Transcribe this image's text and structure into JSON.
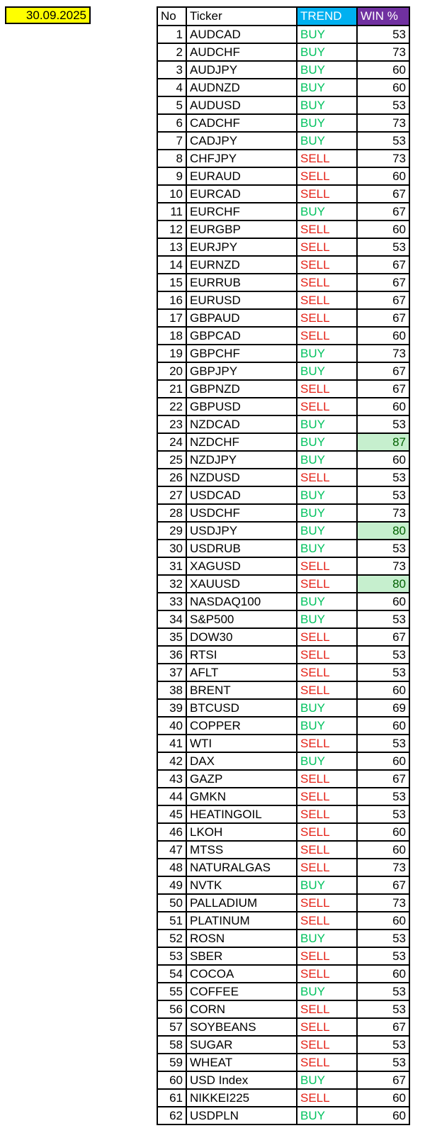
{
  "date_label": "30.09.2025",
  "colors": {
    "date_bg": "#FFFF00",
    "trend_header_bg": "#00B0F0",
    "win_header_bg": "#7030A0",
    "header_text": "#FFFFFF",
    "buy_text": "#00C25E",
    "sell_text": "#E42117",
    "highlight_bg": "#C6EFCE",
    "highlight_text": "#006100",
    "cell_text": "#000000"
  },
  "table": {
    "headers": [
      "No",
      "Ticker",
      "TREND",
      "WIN %"
    ],
    "rows": [
      {
        "no": 1,
        "ticker": "AUDCAD",
        "trend": "BUY",
        "win": 53,
        "highlight": false
      },
      {
        "no": 2,
        "ticker": "AUDCHF",
        "trend": "BUY",
        "win": 73,
        "highlight": false
      },
      {
        "no": 3,
        "ticker": "AUDJPY",
        "trend": "BUY",
        "win": 60,
        "highlight": false
      },
      {
        "no": 4,
        "ticker": "AUDNZD",
        "trend": "BUY",
        "win": 60,
        "highlight": false
      },
      {
        "no": 5,
        "ticker": "AUDUSD",
        "trend": "BUY",
        "win": 53,
        "highlight": false
      },
      {
        "no": 6,
        "ticker": "CADCHF",
        "trend": "BUY",
        "win": 73,
        "highlight": false
      },
      {
        "no": 7,
        "ticker": "CADJPY",
        "trend": "BUY",
        "win": 53,
        "highlight": false
      },
      {
        "no": 8,
        "ticker": "CHFJPY",
        "trend": "SELL",
        "win": 73,
        "highlight": false
      },
      {
        "no": 9,
        "ticker": "EURAUD",
        "trend": "SELL",
        "win": 60,
        "highlight": false
      },
      {
        "no": 10,
        "ticker": "EURCAD",
        "trend": "SELL",
        "win": 67,
        "highlight": false
      },
      {
        "no": 11,
        "ticker": "EURCHF",
        "trend": "BUY",
        "win": 67,
        "highlight": false
      },
      {
        "no": 12,
        "ticker": "EURGBP",
        "trend": "SELL",
        "win": 60,
        "highlight": false
      },
      {
        "no": 13,
        "ticker": "EURJPY",
        "trend": "SELL",
        "win": 53,
        "highlight": false
      },
      {
        "no": 14,
        "ticker": "EURNZD",
        "trend": "SELL",
        "win": 67,
        "highlight": false
      },
      {
        "no": 15,
        "ticker": "EURRUB",
        "trend": "SELL",
        "win": 67,
        "highlight": false
      },
      {
        "no": 16,
        "ticker": "EURUSD",
        "trend": "SELL",
        "win": 67,
        "highlight": false
      },
      {
        "no": 17,
        "ticker": "GBPAUD",
        "trend": "SELL",
        "win": 67,
        "highlight": false
      },
      {
        "no": 18,
        "ticker": "GBPCAD",
        "trend": "SELL",
        "win": 60,
        "highlight": false
      },
      {
        "no": 19,
        "ticker": "GBPCHF",
        "trend": "BUY",
        "win": 73,
        "highlight": false
      },
      {
        "no": 20,
        "ticker": "GBPJPY",
        "trend": "BUY",
        "win": 67,
        "highlight": false
      },
      {
        "no": 21,
        "ticker": "GBPNZD",
        "trend": "SELL",
        "win": 67,
        "highlight": false
      },
      {
        "no": 22,
        "ticker": "GBPUSD",
        "trend": "SELL",
        "win": 60,
        "highlight": false
      },
      {
        "no": 23,
        "ticker": "NZDCAD",
        "trend": "BUY",
        "win": 53,
        "highlight": false
      },
      {
        "no": 24,
        "ticker": "NZDCHF",
        "trend": "BUY",
        "win": 87,
        "highlight": true
      },
      {
        "no": 25,
        "ticker": "NZDJPY",
        "trend": "BUY",
        "win": 60,
        "highlight": false
      },
      {
        "no": 26,
        "ticker": "NZDUSD",
        "trend": "SELL",
        "win": 53,
        "highlight": false
      },
      {
        "no": 27,
        "ticker": "USDCAD",
        "trend": "BUY",
        "win": 53,
        "highlight": false
      },
      {
        "no": 28,
        "ticker": "USDCHF",
        "trend": "BUY",
        "win": 73,
        "highlight": false
      },
      {
        "no": 29,
        "ticker": "USDJPY",
        "trend": "BUY",
        "win": 80,
        "highlight": true
      },
      {
        "no": 30,
        "ticker": "USDRUB",
        "trend": "BUY",
        "win": 53,
        "highlight": false
      },
      {
        "no": 31,
        "ticker": "XAGUSD",
        "trend": "SELL",
        "win": 73,
        "highlight": false
      },
      {
        "no": 32,
        "ticker": "XAUUSD",
        "trend": "SELL",
        "win": 80,
        "highlight": true
      },
      {
        "no": 33,
        "ticker": "NASDAQ100",
        "trend": "BUY",
        "win": 60,
        "highlight": false
      },
      {
        "no": 34,
        "ticker": "S&P500",
        "trend": "BUY",
        "win": 53,
        "highlight": false
      },
      {
        "no": 35,
        "ticker": "DOW30",
        "trend": "SELL",
        "win": 67,
        "highlight": false
      },
      {
        "no": 36,
        "ticker": "RTSI",
        "trend": "SELL",
        "win": 53,
        "highlight": false
      },
      {
        "no": 37,
        "ticker": "AFLT",
        "trend": "SELL",
        "win": 53,
        "highlight": false
      },
      {
        "no": 38,
        "ticker": "BRENT",
        "trend": "SELL",
        "win": 60,
        "highlight": false
      },
      {
        "no": 39,
        "ticker": "BTCUSD",
        "trend": "BUY",
        "win": 69,
        "highlight": false
      },
      {
        "no": 40,
        "ticker": "COPPER",
        "trend": "BUY",
        "win": 60,
        "highlight": false
      },
      {
        "no": 41,
        "ticker": "WTI",
        "trend": "SELL",
        "win": 53,
        "highlight": false
      },
      {
        "no": 42,
        "ticker": "DAX",
        "trend": "BUY",
        "win": 60,
        "highlight": false
      },
      {
        "no": 43,
        "ticker": "GAZP",
        "trend": "SELL",
        "win": 67,
        "highlight": false
      },
      {
        "no": 44,
        "ticker": "GMKN",
        "trend": "SELL",
        "win": 53,
        "highlight": false
      },
      {
        "no": 45,
        "ticker": "HEATINGOIL",
        "trend": "SELL",
        "win": 53,
        "highlight": false
      },
      {
        "no": 46,
        "ticker": "LKOH",
        "trend": "SELL",
        "win": 60,
        "highlight": false
      },
      {
        "no": 47,
        "ticker": "MTSS",
        "trend": "SELL",
        "win": 60,
        "highlight": false
      },
      {
        "no": 48,
        "ticker": "NATURALGAS",
        "trend": "SELL",
        "win": 73,
        "highlight": false
      },
      {
        "no": 49,
        "ticker": "NVTK",
        "trend": "BUY",
        "win": 67,
        "highlight": false
      },
      {
        "no": 50,
        "ticker": "PALLADIUM",
        "trend": "SELL",
        "win": 73,
        "highlight": false
      },
      {
        "no": 51,
        "ticker": "PLATINUM",
        "trend": "SELL",
        "win": 60,
        "highlight": false
      },
      {
        "no": 52,
        "ticker": "ROSN",
        "trend": "BUY",
        "win": 53,
        "highlight": false
      },
      {
        "no": 53,
        "ticker": "SBER",
        "trend": "SELL",
        "win": 53,
        "highlight": false
      },
      {
        "no": 54,
        "ticker": "COCOA",
        "trend": "SELL",
        "win": 60,
        "highlight": false
      },
      {
        "no": 55,
        "ticker": "COFFEE",
        "trend": "BUY",
        "win": 53,
        "highlight": false
      },
      {
        "no": 56,
        "ticker": "CORN",
        "trend": "SELL",
        "win": 53,
        "highlight": false
      },
      {
        "no": 57,
        "ticker": "SOYBEANS",
        "trend": "SELL",
        "win": 67,
        "highlight": false
      },
      {
        "no": 58,
        "ticker": "SUGAR",
        "trend": "SELL",
        "win": 53,
        "highlight": false
      },
      {
        "no": 59,
        "ticker": "WHEAT",
        "trend": "SELL",
        "win": 53,
        "highlight": false
      },
      {
        "no": 60,
        "ticker": "USD Index",
        "trend": "BUY",
        "win": 67,
        "highlight": false
      },
      {
        "no": 61,
        "ticker": "NIKKEI225",
        "trend": "SELL",
        "win": 60,
        "highlight": false
      },
      {
        "no": 62,
        "ticker": "USDPLN",
        "trend": "BUY",
        "win": 60,
        "highlight": false
      }
    ]
  }
}
